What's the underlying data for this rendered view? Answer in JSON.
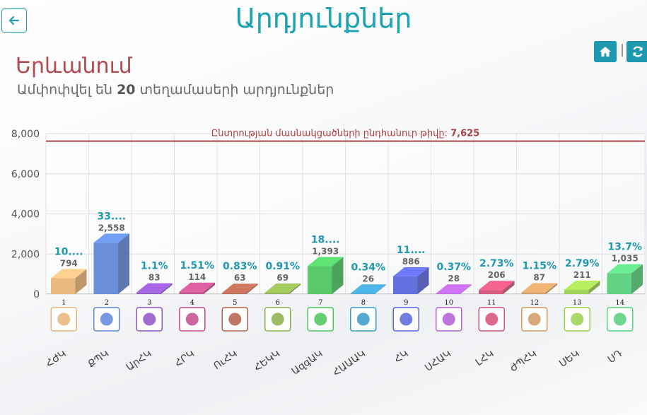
{
  "page": {
    "title": "Արդյունքներ",
    "city": "Երևանում",
    "subtitle_pre": "Ամփոփվել են",
    "subtitle_count": "20",
    "subtitle_post": "տեղամասերի արդյունքներ",
    "tool_separator": "|"
  },
  "icons": {
    "back": "arrow-left-icon",
    "home": "home-icon",
    "refresh": "refresh-icon"
  },
  "colors": {
    "title": "#19a3b3",
    "city": "#b34a4f",
    "reference_line": "#a94444",
    "button": "#1e98ae",
    "percent_label": "#1e98ae",
    "value_label": "#666666"
  },
  "chart_data": {
    "type": "bar",
    "reference_label": "Ընտրության մասնակցածների ընդհանուր թիվը:",
    "reference_value": 7625,
    "reference_value_text": "7,625",
    "ylim": [
      0,
      8000
    ],
    "yticks": [
      "0",
      "2,000",
      "4,000",
      "6,000",
      "8,000"
    ],
    "grid": true,
    "bars": [
      {
        "num": "1",
        "label": "ՀԺԿ",
        "value": 794,
        "value_text": "794",
        "pct": "10....",
        "color": "#e8b477"
      },
      {
        "num": "2",
        "label": "ՔՊԿ",
        "value": 2558,
        "value_text": "2,558",
        "pct": "33....",
        "color": "#5f86d6"
      },
      {
        "num": "3",
        "label": "ԱրՀԿ",
        "value": 83,
        "value_text": "83",
        "pct": "1.1%",
        "color": "#8e52c8"
      },
      {
        "num": "4",
        "label": "ՀՐԿ",
        "value": 114,
        "value_text": "114",
        "pct": "1.51%",
        "color": "#c24c8a"
      },
      {
        "num": "5",
        "label": "ՈւՀԿ",
        "value": 63,
        "value_text": "63",
        "pct": "0.83%",
        "color": "#b2624b"
      },
      {
        "num": "6",
        "label": "ՀԵԿԿ",
        "value": 69,
        "value_text": "69",
        "pct": "0.91%",
        "color": "#8ab04a"
      },
      {
        "num": "7",
        "label": "ԱզգԱԿ",
        "value": 1393,
        "value_text": "1,393",
        "pct": "18....",
        "color": "#4bc45c"
      },
      {
        "num": "8",
        "label": "ՀԱԱԱԿ",
        "value": 26,
        "value_text": "26",
        "pct": "0.34%",
        "color": "#3a9ac9"
      },
      {
        "num": "9",
        "label": "ՀԿ",
        "value": 886,
        "value_text": "886",
        "pct": "11....",
        "color": "#5864dc"
      },
      {
        "num": "10",
        "label": "ՍՀԱԿ",
        "value": 28,
        "value_text": "28",
        "pct": "0.37%",
        "color": "#b25ed4"
      },
      {
        "num": "11",
        "label": "ԼՀԿ",
        "value": 206,
        "value_text": "206",
        "pct": "2.73%",
        "color": "#d64f78"
      },
      {
        "num": "12",
        "label": "ԺՊՀԿ",
        "value": 87,
        "value_text": "87",
        "pct": "1.15%",
        "color": "#d19a60"
      },
      {
        "num": "13",
        "label": "ՍԵԿ",
        "value": 211,
        "value_text": "211",
        "pct": "2.79%",
        "color": "#9ccf4d"
      },
      {
        "num": "14",
        "label": "ՍԴ",
        "value": 1035,
        "value_text": "1,035",
        "pct": "13.7%",
        "color": "#55cf7a"
      }
    ]
  }
}
